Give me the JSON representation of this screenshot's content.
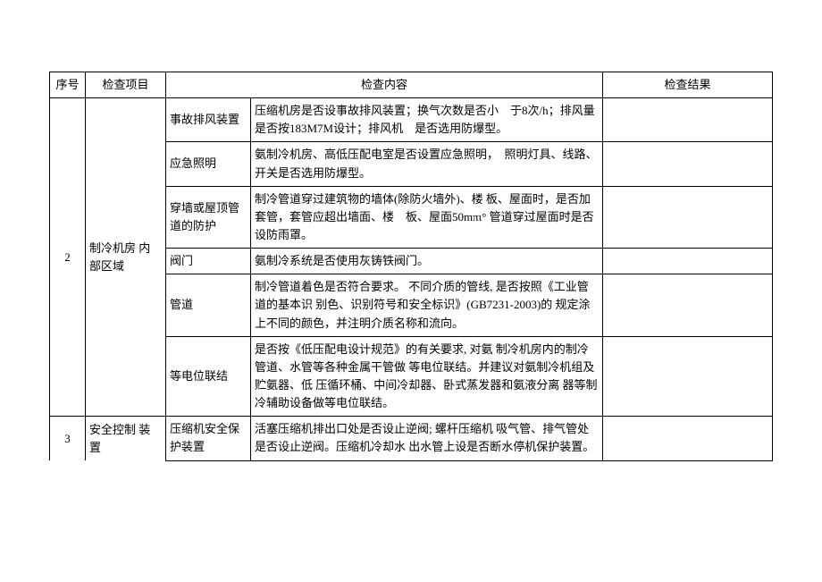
{
  "header": {
    "seq": "序号",
    "item": "检查项目",
    "content": "检查内容",
    "result": "检查结果"
  },
  "rows": [
    {
      "seq": "2",
      "item": "制冷机房 内部区域",
      "subs": [
        {
          "name": "事故排风装置",
          "content": "压缩机房是否设事故排风装置；换气次数是否小　于8次/h；排风量是否按183M7M设计；排风机　是否选用防爆型。"
        },
        {
          "name": "应急照明",
          "content": "氨制冷机房、高低压配电室是否设置应急照明，　照明灯具、线路、开关是否选用防爆型。"
        },
        {
          "name": "穿墙或屋顶管道的防护",
          "content": "制冷管道穿过建筑物的墙体(除防火墙外)、楼 板、屋面时，是否加套管，套管应超出墙面、楼　板、屋面50mπι° 管道穿过屋面时是否设防雨罩。"
        },
        {
          "name": "阀门",
          "content": "氨制冷系统是否使用灰铸铁阀门。"
        },
        {
          "name": "管道",
          "content": "制冷管道着色是否符合要求。\n不同介质的管线, 是否按照《工业管道的基本识 别色、识别符号和安全标识》(GB7231-2003)的 规定涂上不同的颜色，并注明介质名称和流向。"
        },
        {
          "name": "等电位联结",
          "content": "是否按《低压配电设计规范》的有关要求, 对氨 制冷机房内的制冷管道、水管等各种金属干管做 等电位联结。并建议对氨制冷机组及贮氨器、低 压循环桶、中间冷却器、卧式蒸发器和氨液分离 器等制冷辅助设备做等电位联结。"
        }
      ]
    },
    {
      "seq": "3",
      "item": "安全控制 装置",
      "subs": [
        {
          "name": "压缩机安全保护装置",
          "content": "活塞压缩机排出口处是否设止逆阀; 螺杆压缩机 吸气管、排气管处是否设止逆阀。压缩机冷却水 出水管上设是否断水停机保护装置。"
        }
      ]
    }
  ]
}
